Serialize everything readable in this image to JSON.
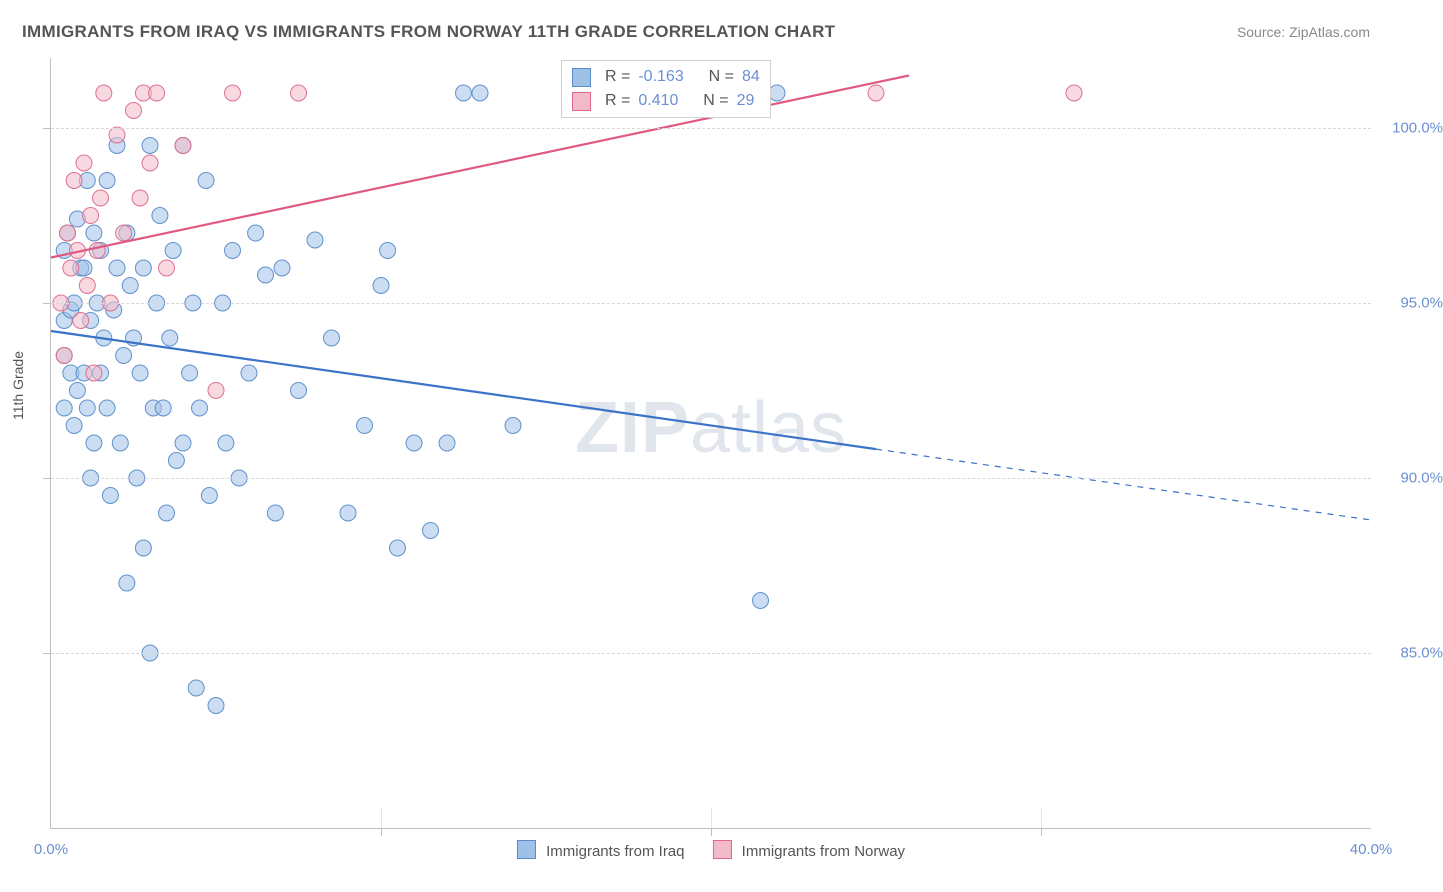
{
  "title": "IMMIGRANTS FROM IRAQ VS IMMIGRANTS FROM NORWAY 11TH GRADE CORRELATION CHART",
  "source_label": "Source:",
  "source_name": "ZipAtlas.com",
  "y_axis_label": "11th Grade",
  "watermark_a": "ZIP",
  "watermark_b": "atlas",
  "chart": {
    "type": "scatter-correlation",
    "background_color": "#ffffff",
    "grid_color": "#d8d8d8",
    "axis_color": "#bfbfbf",
    "tick_label_color": "#6b8fd4",
    "tick_fontsize": 15,
    "xlim": [
      0,
      40
    ],
    "ylim": [
      80,
      102
    ],
    "xticks": [
      0,
      10,
      20,
      30,
      40
    ],
    "xtick_labels": [
      "0.0%",
      "",
      "",
      "",
      "40.0%"
    ],
    "yticks": [
      85,
      90,
      95,
      100
    ],
    "ytick_labels": [
      "85.0%",
      "90.0%",
      "95.0%",
      "100.0%"
    ],
    "marker_radius": 8,
    "marker_opacity": 0.55,
    "marker_stroke_opacity": 0.95,
    "line_width": 2.2,
    "series": [
      {
        "id": "iraq",
        "label": "Immigrants from Iraq",
        "fill_color": "#9ec1e8",
        "stroke_color": "#5a8cc9",
        "line_color": "#3b73c8",
        "r_value": "-0.163",
        "n_value": "84",
        "trend": {
          "x0": 0,
          "y0": 94.2,
          "x1": 40,
          "y1": 88.8,
          "x_solid_end": 25
        },
        "points": [
          [
            0.4,
            94.5
          ],
          [
            0.4,
            93.5
          ],
          [
            0.4,
            92.0
          ],
          [
            0.4,
            96.5
          ],
          [
            0.5,
            97.0
          ],
          [
            0.6,
            93.0
          ],
          [
            0.6,
            94.8
          ],
          [
            0.7,
            91.5
          ],
          [
            0.7,
            95.0
          ],
          [
            0.8,
            97.4
          ],
          [
            0.8,
            92.5
          ],
          [
            0.9,
            96.0
          ],
          [
            1.0,
            96.0
          ],
          [
            1.0,
            93.0
          ],
          [
            1.1,
            98.5
          ],
          [
            1.1,
            92.0
          ],
          [
            1.2,
            94.5
          ],
          [
            1.2,
            90.0
          ],
          [
            1.3,
            97.0
          ],
          [
            1.3,
            91.0
          ],
          [
            1.4,
            95.0
          ],
          [
            1.5,
            93.0
          ],
          [
            1.5,
            96.5
          ],
          [
            1.6,
            94.0
          ],
          [
            1.7,
            98.5
          ],
          [
            1.7,
            92.0
          ],
          [
            1.8,
            89.5
          ],
          [
            1.9,
            94.8
          ],
          [
            2.0,
            99.5
          ],
          [
            2.0,
            96.0
          ],
          [
            2.1,
            91.0
          ],
          [
            2.2,
            93.5
          ],
          [
            2.3,
            97.0
          ],
          [
            2.3,
            87.0
          ],
          [
            2.4,
            95.5
          ],
          [
            2.5,
            94.0
          ],
          [
            2.6,
            90.0
          ],
          [
            2.7,
            93.0
          ],
          [
            2.8,
            96.0
          ],
          [
            2.8,
            88.0
          ],
          [
            3.0,
            99.5
          ],
          [
            3.0,
            85.0
          ],
          [
            3.1,
            92.0
          ],
          [
            3.2,
            95.0
          ],
          [
            3.3,
            97.5
          ],
          [
            3.4,
            92.0
          ],
          [
            3.5,
            89.0
          ],
          [
            3.6,
            94.0
          ],
          [
            3.7,
            96.5
          ],
          [
            3.8,
            90.5
          ],
          [
            4.0,
            99.5
          ],
          [
            4.0,
            91.0
          ],
          [
            4.2,
            93.0
          ],
          [
            4.3,
            95.0
          ],
          [
            4.4,
            84.0
          ],
          [
            4.5,
            92.0
          ],
          [
            4.7,
            98.5
          ],
          [
            4.8,
            89.5
          ],
          [
            5.0,
            83.5
          ],
          [
            5.2,
            95.0
          ],
          [
            5.3,
            91.0
          ],
          [
            5.5,
            96.5
          ],
          [
            5.7,
            90.0
          ],
          [
            6.0,
            93.0
          ],
          [
            6.2,
            97.0
          ],
          [
            6.5,
            95.8
          ],
          [
            6.8,
            89.0
          ],
          [
            7.0,
            96.0
          ],
          [
            7.5,
            92.5
          ],
          [
            8.0,
            96.8
          ],
          [
            8.5,
            94.0
          ],
          [
            9.0,
            89.0
          ],
          [
            9.5,
            91.5
          ],
          [
            10.0,
            95.5
          ],
          [
            10.2,
            96.5
          ],
          [
            10.5,
            88.0
          ],
          [
            11.0,
            91.0
          ],
          [
            11.5,
            88.5
          ],
          [
            12.0,
            91.0
          ],
          [
            12.5,
            101.0
          ],
          [
            13.0,
            101.0
          ],
          [
            14.0,
            91.5
          ],
          [
            21.5,
            86.5
          ],
          [
            22.0,
            101.0
          ]
        ]
      },
      {
        "id": "norway",
        "label": "Immigrants from Norway",
        "fill_color": "#f2b9c8",
        "stroke_color": "#dc6a8b",
        "line_color": "#e05a80",
        "r_value": "0.410",
        "n_value": "29",
        "trend": {
          "x0": 0,
          "y0": 96.3,
          "x1": 26,
          "y1": 101.5,
          "x_solid_end": 26
        },
        "points": [
          [
            0.3,
            95.0
          ],
          [
            0.4,
            93.5
          ],
          [
            0.5,
            97.0
          ],
          [
            0.6,
            96.0
          ],
          [
            0.7,
            98.5
          ],
          [
            0.8,
            96.5
          ],
          [
            0.9,
            94.5
          ],
          [
            1.0,
            99.0
          ],
          [
            1.1,
            95.5
          ],
          [
            1.2,
            97.5
          ],
          [
            1.3,
            93.0
          ],
          [
            1.4,
            96.5
          ],
          [
            1.5,
            98.0
          ],
          [
            1.6,
            101.0
          ],
          [
            1.8,
            95.0
          ],
          [
            2.0,
            99.8
          ],
          [
            2.2,
            97.0
          ],
          [
            2.5,
            100.5
          ],
          [
            2.7,
            98.0
          ],
          [
            2.8,
            101.0
          ],
          [
            3.0,
            99.0
          ],
          [
            3.2,
            101.0
          ],
          [
            3.5,
            96.0
          ],
          [
            4.0,
            99.5
          ],
          [
            5.0,
            92.5
          ],
          [
            5.5,
            101.0
          ],
          [
            7.5,
            101.0
          ],
          [
            25.0,
            101.0
          ],
          [
            31.0,
            101.0
          ]
        ]
      }
    ],
    "legend_bottom": {
      "items": [
        {
          "label": "Immigrants from Iraq",
          "fill": "#9ec1e8",
          "stroke": "#5a8cc9"
        },
        {
          "label": "Immigrants from Norway",
          "fill": "#f2b9c8",
          "stroke": "#dc6a8b"
        }
      ]
    },
    "stats_box": {
      "r_prefix": "R =",
      "n_prefix": "N ="
    }
  }
}
